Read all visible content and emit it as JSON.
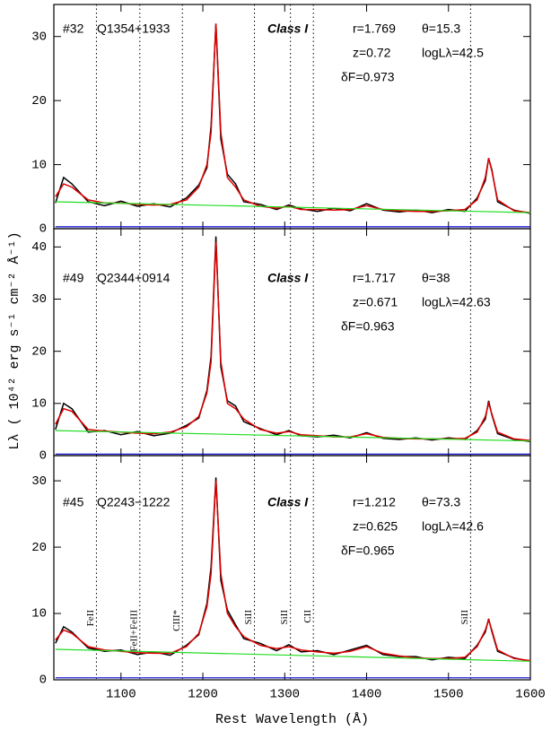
{
  "chart_data": [
    {
      "type": "line",
      "xlim": [
        1018,
        1600
      ],
      "ylim": [
        0,
        35
      ],
      "xticks": [
        1100,
        1200,
        1300,
        1400,
        1500,
        1600
      ],
      "yticks": [
        0,
        10,
        20,
        30
      ],
      "vlines": [
        1070,
        1123,
        1175,
        1263,
        1307,
        1335,
        1527
      ],
      "labels": {
        "id": "#32",
        "name": "Q1354+1933",
        "class": "Class I",
        "r": "r=1.769",
        "theta": "θ=15.3",
        "z": "z=0.72",
        "logL": "logLλ=42.5",
        "dF": "δF=0.973"
      },
      "x": [
        1020,
        1030,
        1040,
        1060,
        1080,
        1100,
        1120,
        1140,
        1160,
        1180,
        1195,
        1205,
        1210,
        1216,
        1222,
        1230,
        1240,
        1250,
        1270,
        1290,
        1305,
        1320,
        1340,
        1360,
        1380,
        1400,
        1420,
        1440,
        1460,
        1480,
        1500,
        1520,
        1535,
        1545,
        1549,
        1553,
        1560,
        1580,
        1600
      ],
      "series": [
        {
          "color": "#000000",
          "values": [
            4,
            8,
            7,
            4.2,
            3.6,
            4.3,
            3.5,
            3.9,
            3.4,
            4.8,
            6.8,
            9.5,
            16,
            32,
            14,
            8.5,
            7,
            4.2,
            3.8,
            3,
            3.7,
            3.1,
            2.7,
            3.2,
            2.8,
            3.9,
            2.9,
            2.6,
            2.9,
            2.5,
            3,
            2.7,
            4.8,
            7.5,
            11,
            9.2,
            4.2,
            2.9,
            2.4
          ]
        },
        {
          "color": "#e00000",
          "values": [
            5,
            7,
            6.5,
            4.5,
            4,
            4,
            3.8,
            3.7,
            3.8,
            4.5,
            6.5,
            10,
            15,
            32,
            15,
            8,
            6.5,
            4.5,
            3.5,
            3.2,
            3.5,
            3,
            3,
            2.9,
            3,
            3.6,
            3,
            2.8,
            2.7,
            2.7,
            2.8,
            3,
            4.5,
            8,
            11,
            9,
            4.5,
            2.8,
            2.5
          ]
        },
        {
          "color": "#22dd22",
          "x": [
            1020,
            1600
          ],
          "values": [
            4.2,
            2.5
          ]
        },
        {
          "color": "#0000cc",
          "x": [
            1020,
            1600
          ],
          "values": [
            0.3,
            0.3
          ]
        }
      ]
    },
    {
      "type": "line",
      "xlim": [
        1018,
        1600
      ],
      "ylim": [
        0,
        43.5
      ],
      "xticks": [
        1100,
        1200,
        1300,
        1400,
        1500,
        1600
      ],
      "yticks": [
        0,
        10,
        20,
        30,
        40
      ],
      "vlines": [
        1070,
        1123,
        1175,
        1263,
        1307,
        1335,
        1527
      ],
      "ylabel": "Lλ ( 10⁴² erg s⁻¹ cm⁻² Å⁻¹)",
      "labels": {
        "id": "#49",
        "name": "Q2344+0914",
        "class": "Class I",
        "r": "r=1.717",
        "theta": "θ=38",
        "z": "z=0.671",
        "logL": "logLλ=42.63",
        "dF": "δF=0.963"
      },
      "x": [
        1020,
        1030,
        1040,
        1060,
        1080,
        1100,
        1120,
        1140,
        1160,
        1180,
        1195,
        1205,
        1210,
        1216,
        1222,
        1230,
        1240,
        1250,
        1270,
        1290,
        1305,
        1320,
        1340,
        1360,
        1380,
        1400,
        1420,
        1440,
        1460,
        1480,
        1500,
        1520,
        1535,
        1545,
        1549,
        1553,
        1560,
        1580,
        1600
      ],
      "series": [
        {
          "color": "#000000",
          "values": [
            5,
            10,
            9,
            4.5,
            4.8,
            4,
            4.6,
            3.8,
            4.3,
            5.8,
            7.2,
            12.5,
            19,
            42,
            17,
            10.5,
            9.5,
            6.5,
            5.2,
            4,
            4.8,
            3.8,
            3.6,
            3.9,
            3.4,
            4.4,
            3.3,
            3.1,
            3.4,
            3,
            3.4,
            3.1,
            4.8,
            7,
            10.5,
            7.8,
            4.2,
            3.1,
            2.7
          ]
        },
        {
          "color": "#e00000",
          "values": [
            6,
            9,
            8.5,
            5,
            4.7,
            4.5,
            4.3,
            4.2,
            4.5,
            5.5,
            7.5,
            12,
            18,
            41,
            18,
            10,
            9,
            7,
            5,
            4.3,
            4.6,
            4,
            3.8,
            3.6,
            3.6,
            4.2,
            3.5,
            3.3,
            3.2,
            3.2,
            3.2,
            3.3,
            4.5,
            7.5,
            10,
            8,
            4.5,
            3.2,
            2.9
          ]
        },
        {
          "color": "#22dd22",
          "x": [
            1020,
            1600
          ],
          "values": [
            4.8,
            2.8
          ]
        },
        {
          "color": "#0000cc",
          "x": [
            1020,
            1600
          ],
          "values": [
            0.3,
            0.3
          ]
        }
      ]
    },
    {
      "type": "line",
      "xlim": [
        1018,
        1600
      ],
      "ylim": [
        0,
        33.8
      ],
      "xticks": [
        1100,
        1200,
        1300,
        1400,
        1500,
        1600
      ],
      "yticks": [
        0,
        10,
        20,
        30
      ],
      "vlines": [
        1070,
        1123,
        1175,
        1263,
        1307,
        1335,
        1527
      ],
      "line_labels": [
        "FeII",
        "FeII+FeIII",
        "CIII*",
        "SiII",
        "SiII",
        "CII",
        "SiII"
      ],
      "xlabel": "Rest Wavelength (Å)",
      "labels": {
        "id": "#45",
        "name": "Q2243−1222",
        "class": "Class I",
        "r": "r=1.212",
        "theta": "θ=73.3",
        "z": "z=0.625",
        "logL": "logLλ=42.6",
        "dF": "δF=0.965"
      },
      "x": [
        1020,
        1030,
        1040,
        1060,
        1080,
        1100,
        1120,
        1140,
        1160,
        1180,
        1195,
        1205,
        1210,
        1216,
        1222,
        1230,
        1240,
        1250,
        1270,
        1290,
        1305,
        1320,
        1340,
        1360,
        1380,
        1400,
        1420,
        1440,
        1460,
        1480,
        1500,
        1520,
        1535,
        1545,
        1549,
        1553,
        1560,
        1580,
        1600
      ],
      "series": [
        {
          "color": "#000000",
          "values": [
            5.5,
            8,
            7.2,
            4.8,
            4.3,
            4.5,
            3.8,
            4.2,
            3.7,
            5.2,
            6.8,
            11.5,
            17,
            30.5,
            15,
            10.5,
            8.3,
            6.2,
            5.5,
            4.4,
            5.3,
            4.2,
            4.4,
            3.8,
            4.5,
            5.2,
            3.8,
            3.5,
            3.5,
            3,
            3.4,
            3.2,
            5.2,
            7.2,
            9.2,
            7.3,
            4.3,
            3.3,
            2.8
          ]
        },
        {
          "color": "#e00000",
          "values": [
            6,
            7.5,
            7,
            5,
            4.5,
            4.3,
            4.1,
            4,
            4,
            5,
            7,
            11,
            16,
            30,
            16,
            10,
            8,
            6.5,
            5.2,
            4.7,
            5,
            4.5,
            4.2,
            4,
            4.3,
            5,
            4,
            3.6,
            3.3,
            3.2,
            3.2,
            3.4,
            5,
            7.5,
            9,
            7.5,
            4.5,
            3.2,
            2.9
          ]
        },
        {
          "color": "#22dd22",
          "x": [
            1020,
            1600
          ],
          "values": [
            4.6,
            2.8
          ]
        },
        {
          "color": "#0000cc",
          "x": [
            1020,
            1600
          ],
          "values": [
            0.3,
            0.3
          ]
        }
      ]
    }
  ]
}
